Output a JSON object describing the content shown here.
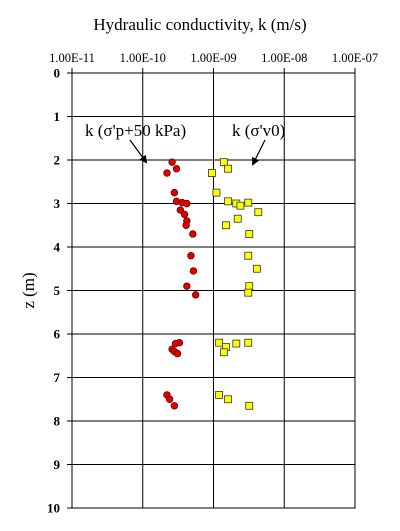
{
  "chart_data": {
    "type": "scatter",
    "title": "Hydraulic conductivity, k (m/s)",
    "xlabel": "Hydraulic conductivity, k (m/s)",
    "ylabel": "z (m)",
    "x_scale": "log",
    "xlim": [
      1e-11,
      1e-07
    ],
    "ylim": [
      0,
      10
    ],
    "y_inverted": true,
    "x_axis_position": "top",
    "grid": true,
    "x_ticks": [
      "1.00E-11",
      "1.00E-10",
      "1.00E-09",
      "1.00E-08",
      "1.00E-07"
    ],
    "y_ticks": [
      "0",
      "1",
      "2",
      "3",
      "4",
      "5",
      "6",
      "7",
      "8",
      "9",
      "10"
    ],
    "series": [
      {
        "marker": "circle",
        "color": "#e00000",
        "annotation": "k (σ'p+50 kPa)",
        "points": [
          {
            "k": 2.6e-10,
            "z": 2.05
          },
          {
            "k": 3e-10,
            "z": 2.2
          },
          {
            "k": 2.2e-10,
            "z": 2.3
          },
          {
            "k": 2.8e-10,
            "z": 2.75
          },
          {
            "k": 3e-10,
            "z": 2.95
          },
          {
            "k": 3.6e-10,
            "z": 2.98
          },
          {
            "k": 4.2e-10,
            "z": 3.0
          },
          {
            "k": 3.4e-10,
            "z": 3.15
          },
          {
            "k": 3.9e-10,
            "z": 3.25
          },
          {
            "k": 4.2e-10,
            "z": 3.4
          },
          {
            "k": 4.1e-10,
            "z": 3.5
          },
          {
            "k": 5.1e-10,
            "z": 3.7
          },
          {
            "k": 4.8e-10,
            "z": 4.2
          },
          {
            "k": 5.2e-10,
            "z": 4.55
          },
          {
            "k": 4.2e-10,
            "z": 4.9
          },
          {
            "k": 5.6e-10,
            "z": 5.1
          },
          {
            "k": 3.3e-10,
            "z": 6.2
          },
          {
            "k": 2.9e-10,
            "z": 6.22
          },
          {
            "k": 2.6e-10,
            "z": 6.35
          },
          {
            "k": 2.8e-10,
            "z": 6.4
          },
          {
            "k": 3.1e-10,
            "z": 6.45
          },
          {
            "k": 2.2e-10,
            "z": 7.4
          },
          {
            "k": 2.4e-10,
            "z": 7.5
          },
          {
            "k": 2.8e-10,
            "z": 7.65
          }
        ]
      },
      {
        "marker": "square",
        "color": "#ffff00",
        "annotation": "k (σ'v0)",
        "points": [
          {
            "k": 1.4e-09,
            "z": 2.05
          },
          {
            "k": 1.6e-09,
            "z": 2.2
          },
          {
            "k": 9.5e-10,
            "z": 2.3
          },
          {
            "k": 1.1e-09,
            "z": 2.75
          },
          {
            "k": 1.6e-09,
            "z": 2.95
          },
          {
            "k": 2.1e-09,
            "z": 3.0
          },
          {
            "k": 3.1e-09,
            "z": 2.98
          },
          {
            "k": 2.4e-09,
            "z": 3.05
          },
          {
            "k": 4.3e-09,
            "z": 3.2
          },
          {
            "k": 2.2e-09,
            "z": 3.35
          },
          {
            "k": 1.5e-09,
            "z": 3.5
          },
          {
            "k": 3.2e-09,
            "z": 3.7
          },
          {
            "k": 3.1e-09,
            "z": 4.2
          },
          {
            "k": 4.1e-09,
            "z": 4.5
          },
          {
            "k": 3.2e-09,
            "z": 4.9
          },
          {
            "k": 3.1e-09,
            "z": 5.05
          },
          {
            "k": 1.2e-09,
            "z": 6.2
          },
          {
            "k": 2.1e-09,
            "z": 6.22
          },
          {
            "k": 3.1e-09,
            "z": 6.2
          },
          {
            "k": 1.5e-09,
            "z": 6.3
          },
          {
            "k": 1.4e-09,
            "z": 6.42
          },
          {
            "k": 1.2e-09,
            "z": 7.4
          },
          {
            "k": 1.6e-09,
            "z": 7.5
          },
          {
            "k": 3.2e-09,
            "z": 7.65
          }
        ]
      }
    ]
  }
}
